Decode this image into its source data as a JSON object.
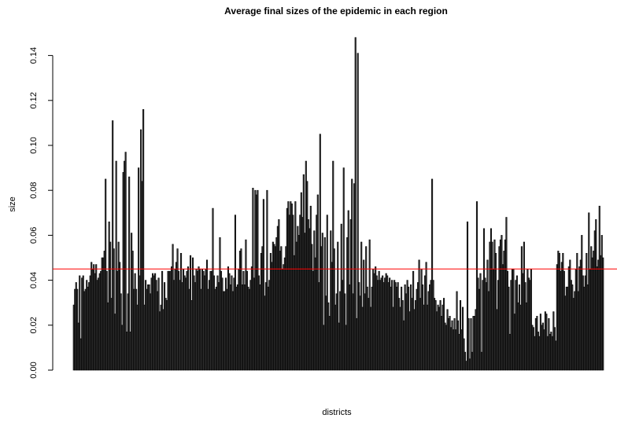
{
  "chart_data": {
    "type": "bar",
    "title": "Average final sizes of the epidemic in each region",
    "xlabel": "districts",
    "ylabel": "size",
    "ylim": [
      0,
      0.15
    ],
    "yticks": [
      0.0,
      0.02,
      0.04,
      0.06,
      0.08,
      0.1,
      0.12,
      0.14
    ],
    "ytick_labels": [
      "0.00",
      "0.02",
      "0.04",
      "0.06",
      "0.08",
      "0.10",
      "0.12",
      "0.14"
    ],
    "reference_line": {
      "value": 0.045,
      "color": "#ff0000"
    },
    "bar_color": "#333333",
    "bar_border_color": "#000000",
    "values": [
      0.029,
      0.036,
      0.039,
      0.036,
      0.021,
      0.042,
      0.014,
      0.041,
      0.042,
      0.035,
      0.036,
      0.04,
      0.037,
      0.039,
      0.042,
      0.048,
      0.045,
      0.047,
      0.043,
      0.047,
      0.04,
      0.041,
      0.043,
      0.044,
      0.05,
      0.05,
      0.053,
      0.085,
      0.044,
      0.03,
      0.066,
      0.057,
      0.032,
      0.111,
      0.054,
      0.025,
      0.093,
      0.044,
      0.057,
      0.048,
      0.034,
      0.02,
      0.088,
      0.093,
      0.097,
      0.017,
      0.034,
      0.086,
      0.017,
      0.061,
      0.053,
      0.036,
      0.043,
      0.036,
      0.029,
      0.09,
      0.042,
      0.107,
      0.084,
      0.116,
      0.029,
      0.04,
      0.036,
      0.038,
      0.038,
      0.034,
      0.041,
      0.043,
      0.042,
      0.043,
      0.04,
      0.035,
      0.041,
      0.026,
      0.029,
      0.044,
      0.027,
      0.039,
      0.032,
      0.031,
      0.044,
      0.044,
      0.044,
      0.046,
      0.056,
      0.04,
      0.045,
      0.048,
      0.054,
      0.044,
      0.04,
      0.052,
      0.039,
      0.045,
      0.042,
      0.041,
      0.044,
      0.046,
      0.036,
      0.051,
      0.031,
      0.05,
      0.042,
      0.039,
      0.045,
      0.044,
      0.046,
      0.045,
      0.036,
      0.045,
      0.044,
      0.042,
      0.045,
      0.049,
      0.036,
      0.04,
      0.044,
      0.044,
      0.072,
      0.042,
      0.036,
      0.037,
      0.042,
      0.039,
      0.059,
      0.044,
      0.041,
      0.035,
      0.035,
      0.041,
      0.036,
      0.046,
      0.043,
      0.038,
      0.042,
      0.035,
      0.041,
      0.069,
      0.037,
      0.038,
      0.045,
      0.053,
      0.054,
      0.038,
      0.044,
      0.038,
      0.058,
      0.044,
      0.037,
      0.036,
      0.04,
      0.046,
      0.081,
      0.041,
      0.08,
      0.078,
      0.08,
      0.042,
      0.038,
      0.052,
      0.055,
      0.076,
      0.033,
      0.039,
      0.08,
      0.037,
      0.04,
      0.052,
      0.048,
      0.057,
      0.056,
      0.055,
      0.059,
      0.064,
      0.067,
      0.053,
      0.055,
      0.045,
      0.047,
      0.05,
      0.055,
      0.072,
      0.075,
      0.069,
      0.075,
      0.074,
      0.069,
      0.051,
      0.075,
      0.057,
      0.064,
      0.06,
      0.069,
      0.079,
      0.068,
      0.087,
      0.061,
      0.093,
      0.084,
      0.067,
      0.063,
      0.073,
      0.056,
      0.044,
      0.062,
      0.05,
      0.069,
      0.078,
      0.039,
      0.105,
      0.055,
      0.061,
      0.02,
      0.059,
      0.033,
      0.069,
      0.03,
      0.024,
      0.062,
      0.048,
      0.093,
      0.054,
      0.029,
      0.034,
      0.057,
      0.021,
      0.035,
      0.065,
      0.04,
      0.09,
      0.034,
      0.02,
      0.059,
      0.071,
      0.038,
      0.067,
      0.085,
      0.034,
      0.083,
      0.148,
      0.023,
      0.141,
      0.039,
      0.033,
      0.057,
      0.028,
      0.049,
      0.034,
      0.055,
      0.037,
      0.032,
      0.058,
      0.028,
      0.037,
      0.045,
      0.043,
      0.046,
      0.042,
      0.04,
      0.044,
      0.04,
      0.041,
      0.042,
      0.039,
      0.041,
      0.043,
      0.042,
      0.039,
      0.041,
      0.037,
      0.04,
      0.028,
      0.04,
      0.039,
      0.037,
      0.039,
      0.032,
      0.028,
      0.037,
      0.031,
      0.022,
      0.038,
      0.034,
      0.04,
      0.037,
      0.026,
      0.038,
      0.032,
      0.044,
      0.027,
      0.031,
      0.036,
      0.039,
      0.049,
      0.032,
      0.045,
      0.038,
      0.029,
      0.042,
      0.048,
      0.029,
      0.035,
      0.038,
      0.04,
      0.085,
      0.04,
      0.032,
      0.031,
      0.026,
      0.029,
      0.028,
      0.031,
      0.024,
      0.029,
      0.032,
      0.021,
      0.02,
      0.027,
      0.023,
      0.024,
      0.019,
      0.022,
      0.018,
      0.023,
      0.018,
      0.035,
      0.022,
      0.016,
      0.031,
      0.018,
      0.028,
      0.014,
      0.008,
      0.004,
      0.066,
      0.023,
      0.005,
      0.023,
      0.008,
      0.024,
      0.024,
      0.027,
      0.075,
      0.041,
      0.036,
      0.043,
      0.008,
      0.04,
      0.063,
      0.041,
      0.039,
      0.049,
      0.035,
      0.057,
      0.063,
      0.057,
      0.045,
      0.058,
      0.052,
      0.027,
      0.04,
      0.055,
      0.058,
      0.06,
      0.047,
      0.053,
      0.058,
      0.068,
      0.044,
      0.037,
      0.016,
      0.04,
      0.045,
      0.045,
      0.025,
      0.04,
      0.042,
      0.03,
      0.038,
      0.029,
      0.055,
      0.043,
      0.057,
      0.039,
      0.03,
      0.045,
      0.041,
      0.04,
      0.045,
      0.02,
      0.019,
      0.015,
      0.023,
      0.024,
      0.017,
      0.015,
      0.025,
      0.02,
      0.021,
      0.018,
      0.026,
      0.025,
      0.015,
      0.023,
      0.016,
      0.017,
      0.015,
      0.026,
      0.019,
      0.013,
      0.047,
      0.053,
      0.052,
      0.044,
      0.048,
      0.052,
      0.044,
      0.033,
      0.037,
      0.037,
      0.046,
      0.049,
      0.04,
      0.038,
      0.032,
      0.035,
      0.045,
      0.052,
      0.035,
      0.046,
      0.049,
      0.06,
      0.042,
      0.037,
      0.042,
      0.052,
      0.038,
      0.07,
      0.045,
      0.055,
      0.05,
      0.053,
      0.062,
      0.067,
      0.046,
      0.049,
      0.073,
      0.051,
      0.06,
      0.05
    ]
  }
}
